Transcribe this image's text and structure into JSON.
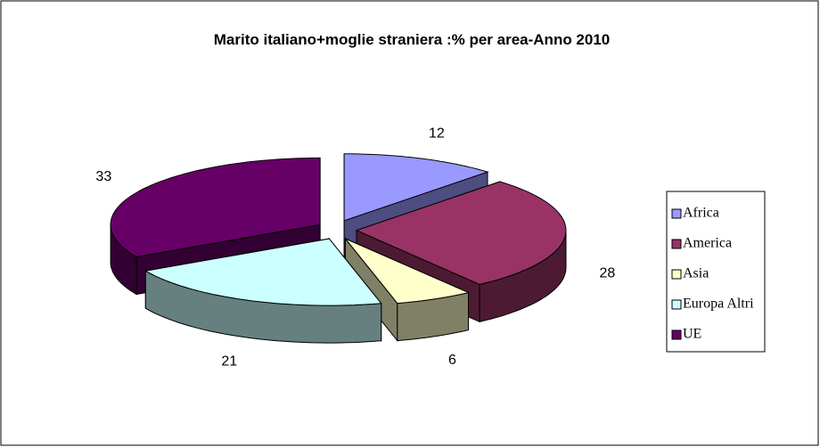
{
  "chart_data": {
    "type": "pie3d",
    "title": "Marito italiano+moglie straniera :% per area-Anno 2010",
    "categories": [
      "Africa",
      "America",
      "Asia",
      "Europa Altri",
      "UE"
    ],
    "values": [
      12,
      28,
      6,
      21,
      33
    ],
    "colors": [
      "#9999ff",
      "#993366",
      "#ffffcc",
      "#ccffff",
      "#660066"
    ],
    "legend": "right"
  }
}
